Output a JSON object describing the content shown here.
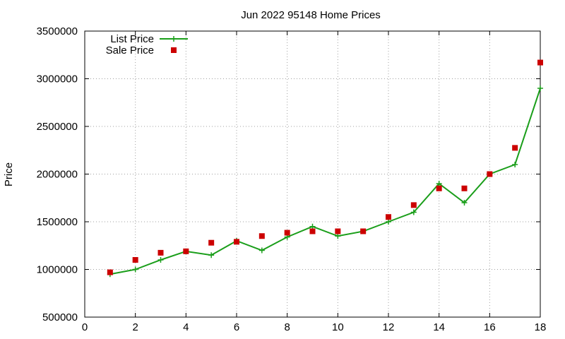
{
  "chart_data": {
    "type": "scatter",
    "title": "Jun 2022 95148 Home Prices",
    "xlabel": "",
    "ylabel": "Price",
    "xlim": [
      0,
      18
    ],
    "ylim": [
      500000,
      3500000
    ],
    "xticks": [
      0,
      2,
      4,
      6,
      8,
      10,
      12,
      14,
      16,
      18
    ],
    "yticks": [
      500000,
      1000000,
      1500000,
      2000000,
      2500000,
      3000000,
      3500000
    ],
    "grid": true,
    "legend_position": "top-left",
    "series": [
      {
        "name": "List Price",
        "style": "line+points",
        "color": "#1a9e1a",
        "marker": "plus",
        "x": [
          1,
          2,
          3,
          4,
          5,
          6,
          7,
          8,
          9,
          10,
          11,
          12,
          13,
          14,
          15,
          16,
          17,
          18
        ],
        "y": [
          950000,
          1000000,
          1100000,
          1190000,
          1150000,
          1300000,
          1200000,
          1340000,
          1450000,
          1350000,
          1400000,
          1500000,
          1600000,
          1900000,
          1700000,
          2000000,
          2100000,
          2900000
        ]
      },
      {
        "name": "Sale Price",
        "style": "points",
        "color": "#cc0000",
        "marker": "square",
        "x": [
          1,
          2,
          3,
          4,
          5,
          6,
          7,
          8,
          9,
          10,
          11,
          12,
          13,
          14,
          15,
          16,
          17,
          18
        ],
        "y": [
          970000,
          1100000,
          1175000,
          1190000,
          1280000,
          1290000,
          1350000,
          1385000,
          1400000,
          1400000,
          1400000,
          1550000,
          1675000,
          1850000,
          1850000,
          2000000,
          2275000,
          3170000
        ]
      }
    ]
  }
}
